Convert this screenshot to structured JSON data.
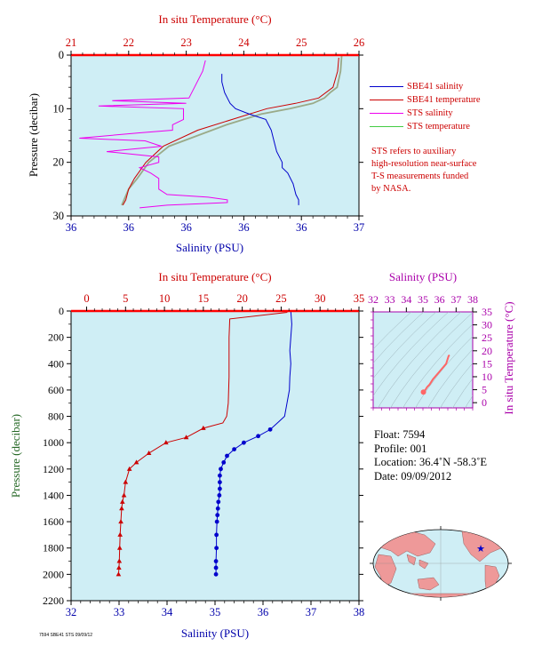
{
  "chart_data": [
    {
      "type": "line",
      "title": "",
      "top_axis": {
        "label": "In situ Temperature (°C)",
        "ticks": [
          "21",
          "22",
          "23",
          "24",
          "25",
          "26"
        ],
        "range": [
          21,
          26
        ],
        "color": "#cc0000"
      },
      "bottom_axis": {
        "label": "Salinity (PSU)",
        "ticks": [
          "36",
          "36",
          "36",
          "36",
          "36",
          "37"
        ],
        "range": [
          35.95,
          37.0
        ],
        "color": "#0000aa"
      },
      "y_axis": {
        "label": "Pressure (decibar)",
        "ticks": [
          "0",
          "10",
          "20",
          "30"
        ],
        "range": [
          0,
          30
        ],
        "inverted": true
      },
      "series": [
        {
          "name": "SBE41 salinity",
          "color": "#0000cc",
          "x": [
            36.5,
            36.5,
            36.51,
            36.52,
            36.53,
            36.55,
            36.6,
            36.66,
            36.68,
            36.69,
            36.7,
            36.72,
            36.72,
            36.74,
            36.76,
            36.77,
            36.78,
            36.78
          ],
          "y": [
            3.5,
            5,
            7,
            8,
            9,
            10,
            11,
            12,
            14,
            16,
            18,
            20,
            21,
            22,
            24,
            26,
            27,
            28
          ]
        },
        {
          "name": "SBE41 temperature",
          "color": "#cc0000",
          "x": [
            25.65,
            25.63,
            25.55,
            25.3,
            24.9,
            24.4,
            23.8,
            23.2,
            22.6,
            22.3,
            22.1,
            22.0,
            21.95,
            21.9
          ],
          "y": [
            0.5,
            3,
            6,
            8,
            9,
            10,
            12,
            14,
            17,
            20,
            23,
            25,
            27,
            28
          ]
        },
        {
          "name": "STS salinity",
          "color": "#ee00ee",
          "x": [
            36.44,
            36.43,
            36.4,
            36.38,
            36.1,
            36.37,
            36.05,
            36.36,
            36.36,
            36.32,
            36.32,
            36.2,
            35.98,
            36.22,
            36.28,
            36.08,
            36.27,
            36.27,
            36.2,
            36.24,
            36.27,
            36.27,
            36.27,
            36.3,
            36.45,
            36.52,
            36.52,
            36.3,
            36.2
          ],
          "y": [
            1,
            3,
            6,
            8,
            8.5,
            9,
            9.5,
            10,
            12,
            13,
            14,
            14.5,
            15.5,
            16,
            17,
            18,
            19,
            20,
            21,
            22,
            23,
            24,
            25,
            26,
            26.5,
            27,
            27.5,
            28,
            28.5
          ]
        },
        {
          "name": "STS temperature",
          "color": "#44cc44",
          "x": [
            25.7,
            25.68,
            25.62,
            25.5,
            25.4,
            25.2,
            24.8,
            24.3,
            23.7,
            23.2,
            22.7,
            22.35,
            22.15,
            22.0,
            21.92,
            21.88
          ],
          "y": [
            0,
            3,
            6,
            7,
            8,
            9,
            10,
            11,
            13,
            15,
            17,
            20,
            23,
            25,
            27,
            28
          ]
        }
      ],
      "legend_position": "right",
      "annotation": [
        "STS refers to auxiliary",
        "high-resolution near-surface",
        "T-S measurements funded",
        "by NASA."
      ]
    },
    {
      "type": "line",
      "title": "",
      "top_axis": {
        "label": "In situ Temperature (°C)",
        "ticks": [
          "0",
          "5",
          "10",
          "15",
          "20",
          "25",
          "30",
          "35"
        ],
        "range": [
          -2,
          35
        ],
        "color": "#cc0000"
      },
      "bottom_axis": {
        "label": "Salinity (PSU)",
        "ticks": [
          "32",
          "33",
          "34",
          "35",
          "36",
          "37",
          "38"
        ],
        "range": [
          32,
          38
        ],
        "color": "#0000aa"
      },
      "y_axis": {
        "label": "Pressure (decibar)",
        "ticks": [
          "0",
          "200",
          "400",
          "600",
          "800",
          "1000",
          "1200",
          "1400",
          "1600",
          "1800",
          "2000",
          "2200"
        ],
        "range": [
          0,
          2200
        ],
        "inverted": true,
        "color": "#226622"
      },
      "series": [
        {
          "name": "",
          "color": "#0000cc",
          "marker": "circle",
          "x": [
            36.58,
            36.6,
            36.58,
            36.56,
            36.58,
            36.56,
            36.55,
            36.5,
            36.45,
            36.3,
            36.15,
            35.9,
            35.6,
            35.4,
            35.25,
            35.18,
            35.12,
            35.1,
            35.1,
            35.1,
            35.09,
            35.07,
            35.06,
            35.05,
            35.04,
            35.03,
            35.03,
            35.02,
            35.02,
            35.02
          ],
          "y": [
            0,
            100,
            200,
            300,
            400,
            500,
            600,
            700,
            800,
            850,
            900,
            950,
            1000,
            1050,
            1100,
            1150,
            1200,
            1250,
            1300,
            1350,
            1400,
            1450,
            1500,
            1550,
            1600,
            1700,
            1800,
            1900,
            1950,
            2000
          ]
        },
        {
          "name": "",
          "color": "#cc0000",
          "marker": "triangle",
          "x": [
            25.8,
            18.4,
            18.3,
            18.3,
            18.2,
            18.0,
            17.5,
            15.0,
            12.8,
            10.2,
            8.0,
            6.4,
            5.5,
            5.0,
            4.8,
            4.6,
            4.5,
            4.4,
            4.3,
            4.25,
            4.2,
            4.15,
            4.1
          ],
          "y": [
            10,
            60,
            200,
            500,
            700,
            800,
            850,
            890,
            960,
            1000,
            1080,
            1150,
            1200,
            1300,
            1400,
            1450,
            1500,
            1600,
            1700,
            1800,
            1900,
            1950,
            2000
          ]
        }
      ]
    },
    {
      "type": "line",
      "title": "",
      "top_axis": {
        "label": "Salinity (PSU)",
        "ticks": [
          "32",
          "33",
          "34",
          "35",
          "36",
          "37",
          "38"
        ],
        "range": [
          32,
          38
        ],
        "color": "#aa00aa"
      },
      "right_axis": {
        "label": "In situ Temperature (°C)",
        "ticks": [
          "0",
          "5",
          "10",
          "15",
          "20",
          "25",
          "30",
          "35"
        ],
        "range": [
          -2,
          35
        ],
        "color": "#aa00aa"
      },
      "series": [
        {
          "name": "",
          "color": "#ff6666",
          "x": [
            36.6,
            36.55,
            36.4,
            36.0,
            35.6,
            35.4,
            35.25,
            35.15,
            35.1,
            35.05,
            35.03
          ],
          "y": [
            18.4,
            18.0,
            15.0,
            12.0,
            9.0,
            7.0,
            6.0,
            5.0,
            4.6,
            4.3,
            4.1
          ]
        }
      ]
    }
  ],
  "float_info": {
    "float_label": "Float:",
    "float_value": "7594",
    "profile_label": "Profile:",
    "profile_value": "001",
    "location_label": "Location:",
    "location_value": "36.4˚N  -58.3˚E",
    "date_label": "Date:",
    "date_value": "09/09/2012"
  },
  "footnote": "7594 SBE41 STS 09/09/12",
  "colors": {
    "plot_bg": "#cfeef5",
    "map_land": "#ee9999",
    "map_ocean": "#cfeef5",
    "location_star": "#0000cc"
  }
}
